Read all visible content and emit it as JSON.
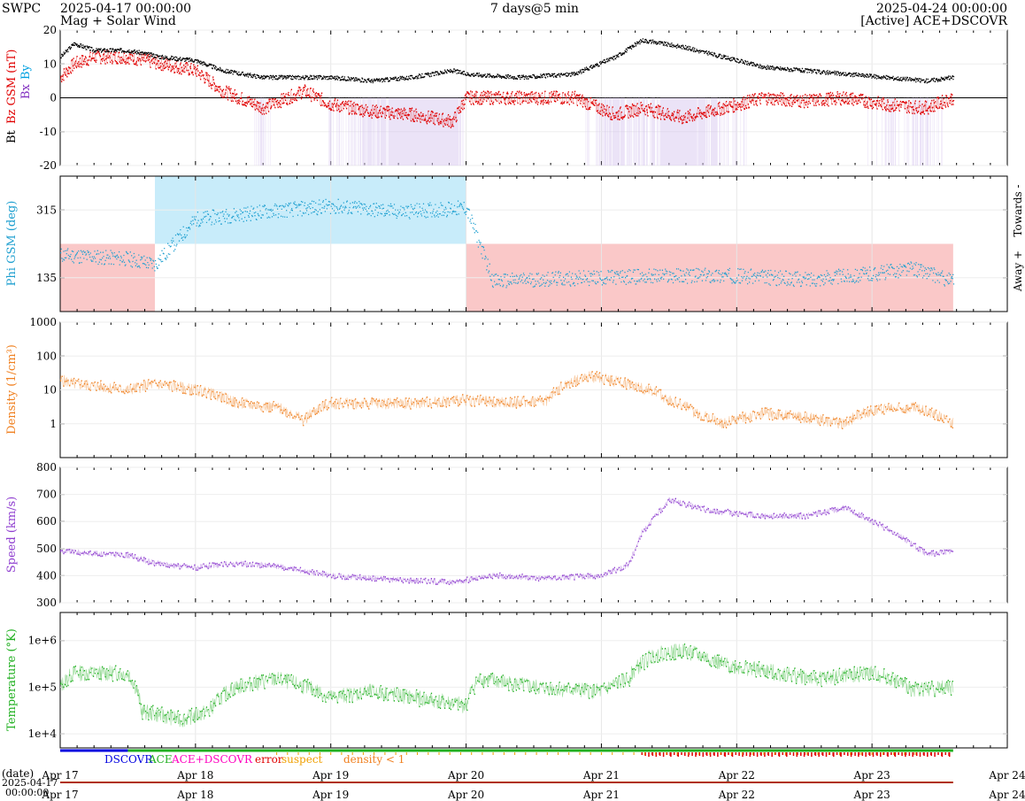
{
  "header": {
    "org": "SWPC",
    "start": "2025-04-17 00:00:00",
    "subtitle": "Mag + Solar Wind",
    "span": "7 days@5 min",
    "end": "2025-04-24 00:00:00",
    "source": "[Active] ACE+DSCOVR"
  },
  "colors": {
    "bt": "#000000",
    "bz": "#e00000",
    "by": "#00a0e0",
    "bx": "#8030c0",
    "phi_towards": "#c8ecfa",
    "phi_away": "#fac8c8",
    "phi_points": "#20a0d0",
    "bz_fill": "#d8c8f0",
    "density": "#f08020",
    "speed": "#9040d0",
    "temperature": "#20b020",
    "dscovr": "#0000e0",
    "ace": "#20b020",
    "ace_dscovr": "#ff00c0",
    "error": "#e00000",
    "suspect": "#f0a000",
    "density_lt1": "#f08020"
  },
  "legend": {
    "dscovr": "DSCOVR",
    "ace": "ACE",
    "ace_dscovr": "ACE+DSCOVR",
    "error": "error",
    "suspect": "suspect",
    "density_lt1": "density < 1"
  },
  "time_axis": {
    "date_label": "(date)",
    "start_date": "2025-04-17",
    "start_time": "00:00:00",
    "ticks": [
      "Apr 17",
      "Apr 18",
      "Apr 19",
      "Apr 20",
      "Apr 21",
      "Apr 22",
      "Apr 23",
      "Apr 24"
    ]
  },
  "chart_data": [
    {
      "type": "line",
      "ylabel_parts": [
        "Bt",
        "Bz GSM (nT)",
        "Bx",
        "By"
      ],
      "ylim": [
        -20,
        20
      ],
      "yticks": [
        "20",
        "10",
        "0",
        "-10",
        "-20"
      ],
      "x_days": [
        0,
        0.1,
        0.25,
        0.5,
        0.75,
        1.0,
        1.2,
        1.5,
        1.8,
        2.0,
        2.3,
        2.6,
        2.9,
        3.0,
        3.4,
        3.8,
        4.1,
        4.3,
        4.6,
        4.9,
        5.2,
        5.5,
        5.8,
        6.1,
        6.4,
        6.6
      ],
      "series": [
        {
          "name": "Bt",
          "values": [
            12,
            16,
            14,
            14,
            12,
            11,
            8,
            6,
            6,
            6,
            5,
            6,
            8,
            7,
            6,
            7,
            12,
            17,
            15,
            12,
            9,
            8,
            7,
            6,
            5,
            6
          ]
        },
        {
          "name": "Bz GSM",
          "values": [
            6,
            10,
            12,
            12,
            10,
            8,
            2,
            -3,
            2,
            -2,
            -4,
            -5,
            -7,
            0,
            0,
            0,
            -5,
            -3,
            -6,
            -3,
            0,
            -1,
            0,
            -2,
            -3,
            0
          ]
        }
      ]
    },
    {
      "type": "scatter",
      "ylabel": "Phi GSM (deg)",
      "right_labels": [
        "Towards -",
        "Away +"
      ],
      "ylim": [
        45,
        405
      ],
      "yticks": [
        "315",
        "135"
      ],
      "x_days": [
        0,
        0.5,
        0.7,
        1.0,
        1.5,
        2.0,
        2.5,
        3.0,
        3.2,
        3.5,
        4.0,
        4.5,
        5.0,
        5.5,
        6.0,
        6.3,
        6.6
      ],
      "values": [
        195,
        185,
        170,
        290,
        310,
        325,
        310,
        320,
        125,
        130,
        135,
        140,
        140,
        130,
        145,
        160,
        125
      ]
    },
    {
      "type": "line",
      "ylabel": "Density (1/cm³)",
      "yscale": "log",
      "ylim": [
        0.1,
        1000
      ],
      "yticks": [
        "1000",
        "100",
        "10",
        "1"
      ],
      "x_days": [
        0,
        0.1,
        0.5,
        0.7,
        1.0,
        1.3,
        1.6,
        1.8,
        2.0,
        2.3,
        2.6,
        3.0,
        3.3,
        3.6,
        3.9,
        4.2,
        4.5,
        4.7,
        4.9,
        5.2,
        5.5,
        5.8,
        6.0,
        6.3,
        6.6
      ],
      "values": [
        20,
        15,
        10,
        15,
        10,
        4,
        3,
        1.2,
        4,
        4,
        4,
        5,
        4,
        5,
        25,
        15,
        5,
        2,
        1,
        2,
        1.5,
        1,
        2.5,
        3,
        1
      ]
    },
    {
      "type": "line",
      "ylabel": "Speed (km/s)",
      "ylim": [
        300,
        800
      ],
      "yticks": [
        "800",
        "700",
        "600",
        "500",
        "400",
        "300"
      ],
      "x_days": [
        0,
        0.5,
        0.7,
        1.0,
        1.3,
        1.6,
        2.0,
        2.5,
        2.9,
        3.2,
        3.6,
        4.0,
        4.2,
        4.3,
        4.5,
        4.8,
        5.2,
        5.5,
        5.8,
        6.0,
        6.2,
        6.4,
        6.6
      ],
      "values": [
        490,
        475,
        445,
        430,
        445,
        435,
        400,
        385,
        375,
        400,
        390,
        400,
        440,
        560,
        680,
        640,
        620,
        620,
        650,
        600,
        550,
        480,
        490
      ]
    },
    {
      "type": "line",
      "ylabel": "Temperature (°K)",
      "yscale": "log",
      "ylim": [
        5000,
        4000000
      ],
      "yticks": [
        "1e+6",
        "1e+5",
        "1e+4"
      ],
      "x_days": [
        0,
        0.1,
        0.5,
        0.6,
        0.9,
        1.1,
        1.3,
        1.6,
        2.0,
        2.3,
        2.6,
        3.0,
        3.1,
        3.5,
        4.0,
        4.2,
        4.4,
        4.6,
        4.9,
        5.3,
        5.6,
        6.0,
        6.3,
        6.6
      ],
      "values": [
        100000,
        200000,
        200000,
        30000,
        20000,
        30000,
        100000,
        150000,
        60000,
        80000,
        60000,
        40000,
        150000,
        100000,
        80000,
        150000,
        500000,
        600000,
        300000,
        200000,
        150000,
        200000,
        90000,
        100000
      ]
    }
  ]
}
